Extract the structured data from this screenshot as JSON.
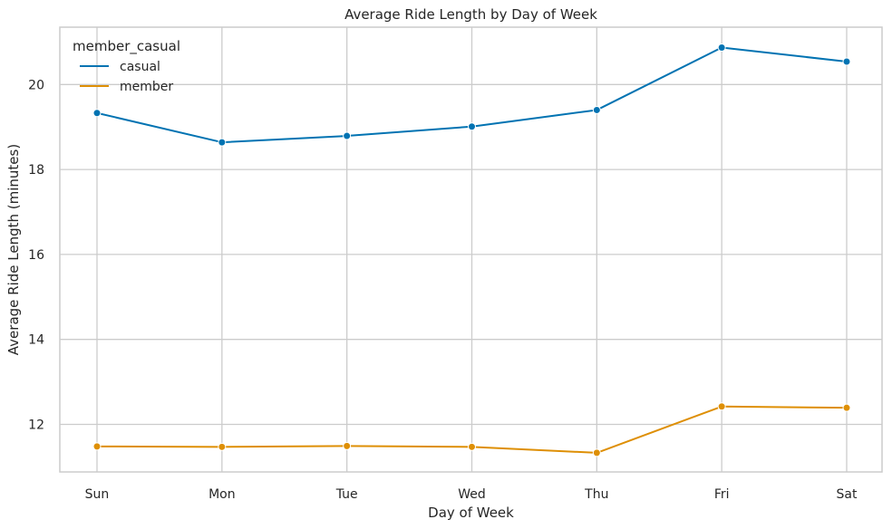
{
  "chart_data": {
    "type": "line",
    "title": "Average Ride Length by Day of Week",
    "xlabel": "Day of Week",
    "ylabel": "Average Ride Length (minutes)",
    "categories": [
      "Sun",
      "Mon",
      "Tue",
      "Wed",
      "Thu",
      "Fri",
      "Sat"
    ],
    "yticks": [
      12,
      14,
      16,
      18,
      20
    ],
    "ylim": [
      10.88,
      21.35
    ],
    "grid": true,
    "legend": {
      "title": "member_casual",
      "placement": "top-left"
    },
    "series": [
      {
        "name": "casual",
        "color": "#0173b2",
        "values": [
          19.33,
          18.64,
          18.79,
          19.01,
          19.4,
          20.87,
          20.54
        ]
      },
      {
        "name": "member",
        "color": "#de8f05",
        "values": [
          11.48,
          11.47,
          11.49,
          11.47,
          11.33,
          12.42,
          12.39
        ]
      }
    ]
  }
}
